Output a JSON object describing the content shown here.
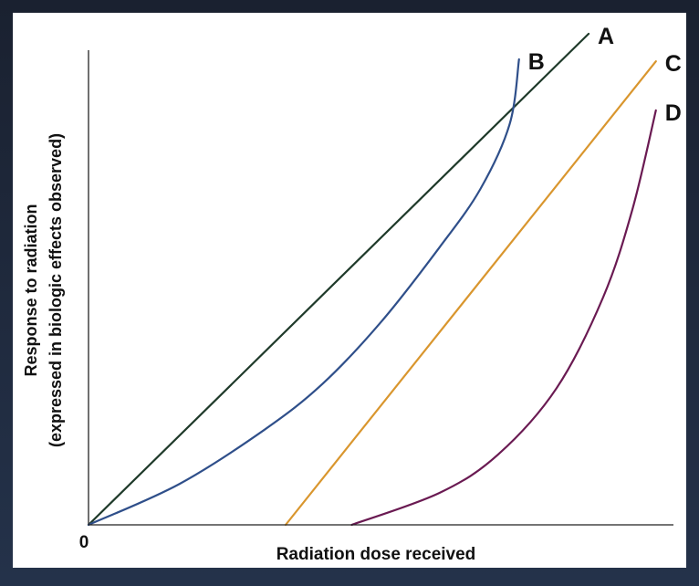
{
  "chart_data": {
    "type": "line",
    "title": "",
    "xlabel": "Radiation dose received",
    "ylabel_line1": "Response to radiation",
    "ylabel_line2": "(expressed in biologic effects observed)",
    "origin_label": "0",
    "xlim": [
      0,
      100
    ],
    "ylim": [
      0,
      100
    ],
    "grid": false,
    "legend": "none (series labelled at line ends)",
    "series": [
      {
        "name": "A",
        "color": "#1f3a2a",
        "shape": "straight line through origin",
        "points": [
          [
            0,
            0
          ],
          [
            85.5,
            100
          ]
        ]
      },
      {
        "name": "B",
        "color": "#2f4f8a",
        "shape": "upward-curving (non-linear, no threshold)",
        "points": [
          [
            0,
            0
          ],
          [
            15.5,
            8.3
          ],
          [
            30,
            19.3
          ],
          [
            40,
            28.7
          ],
          [
            50,
            41.3
          ],
          [
            60,
            56.5
          ],
          [
            67,
            68.4
          ],
          [
            72,
            81.6
          ],
          [
            73.6,
            94.8
          ]
        ]
      },
      {
        "name": "C",
        "color": "#d9962e",
        "shape": "straight line with threshold",
        "points": [
          [
            33.7,
            0
          ],
          [
            97,
            94.4
          ]
        ]
      },
      {
        "name": "D",
        "color": "#6a1a52",
        "shape": "upward-curving with threshold",
        "points": [
          [
            45,
            0
          ],
          [
            60,
            6.5
          ],
          [
            70,
            14.3
          ],
          [
            80,
            27.8
          ],
          [
            88,
            46.4
          ],
          [
            93,
            64.3
          ],
          [
            97,
            84.4
          ]
        ]
      }
    ]
  }
}
